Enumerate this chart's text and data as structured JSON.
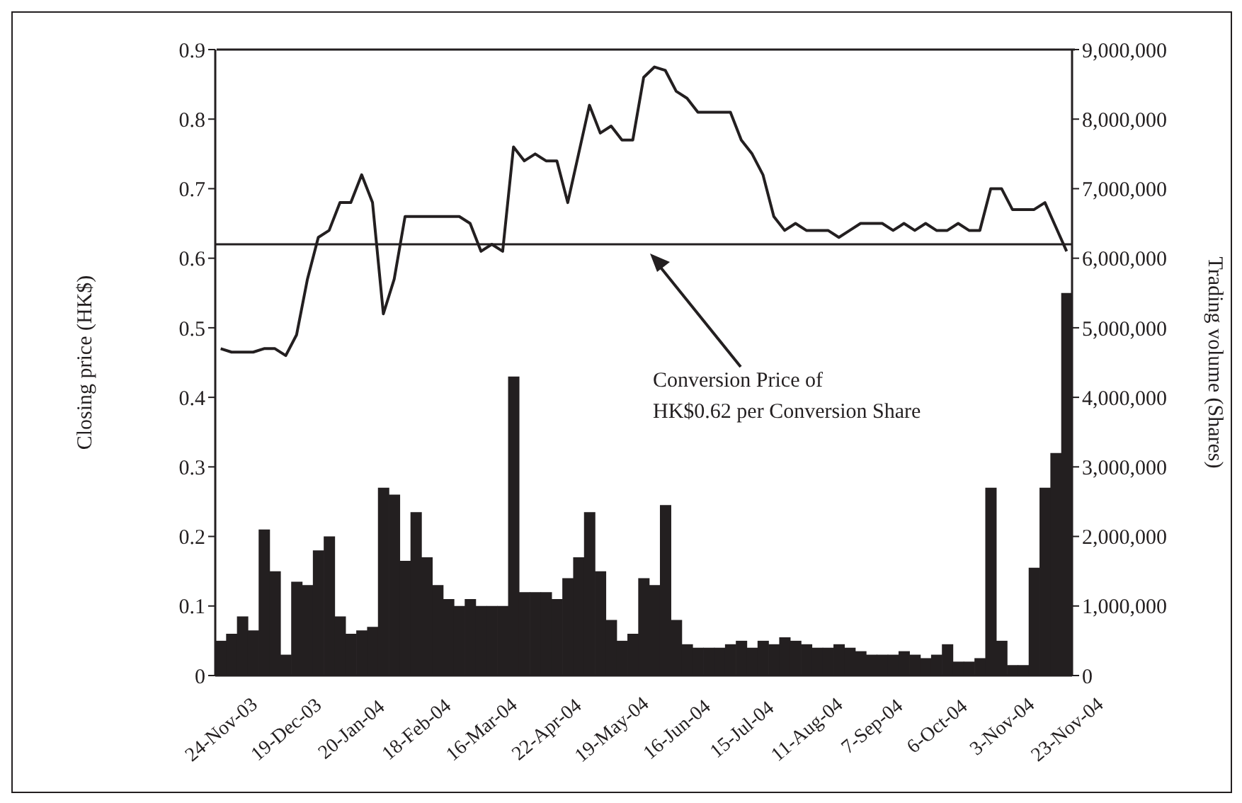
{
  "chart_data": {
    "type": "bar",
    "categories": [
      "24-Nov-03",
      null,
      null,
      null,
      null,
      null,
      "19-Dec-03",
      null,
      null,
      null,
      null,
      null,
      "20-Jan-04",
      null,
      null,
      null,
      null,
      null,
      "18-Feb-04",
      null,
      null,
      null,
      null,
      null,
      "16-Mar-04",
      null,
      null,
      null,
      null,
      null,
      "22-Apr-04",
      null,
      null,
      null,
      null,
      null,
      "19-May-04",
      null,
      null,
      null,
      null,
      null,
      "16-Jun-04",
      null,
      null,
      null,
      null,
      null,
      "15-Jul-04",
      null,
      null,
      null,
      null,
      null,
      "11-Aug-04",
      null,
      null,
      null,
      null,
      null,
      "7-Sep-04",
      null,
      null,
      null,
      null,
      null,
      "6-Oct-04",
      null,
      null,
      null,
      null,
      null,
      "3-Nov-04",
      null,
      null,
      null,
      null,
      null,
      "23-Nov-04"
    ],
    "series": [
      {
        "axis": "y2",
        "color": "#231f20",
        "values": [
          500000,
          600000,
          850000,
          650000,
          2100000,
          1500000,
          300000,
          1350000,
          1300000,
          1800000,
          2000000,
          850000,
          600000,
          650000,
          700000,
          2700000,
          2600000,
          1650000,
          2350000,
          1700000,
          1300000,
          1100000,
          1000000,
          1100000,
          1000000,
          1000000,
          1000000,
          4300000,
          1200000,
          1200000,
          1200000,
          1100000,
          1400000,
          1700000,
          2350000,
          1500000,
          800000,
          500000,
          600000,
          1400000,
          1300000,
          2450000,
          800000,
          450000,
          400000,
          400000,
          400000,
          450000,
          500000,
          400000,
          500000,
          450000,
          550000,
          500000,
          450000,
          400000,
          400000,
          450000,
          400000,
          350000,
          300000,
          300000,
          300000,
          350000,
          300000,
          250000,
          300000,
          450000,
          200000,
          200000,
          250000,
          2700000,
          500000,
          150000,
          150000,
          1550000,
          2700000,
          3200000,
          5500000
        ]
      },
      {
        "type": "line",
        "color": "#231f20",
        "values": [
          0.47,
          0.465,
          0.465,
          0.465,
          0.47,
          0.47,
          0.46,
          0.49,
          0.57,
          0.63,
          0.64,
          0.68,
          0.68,
          0.72,
          0.68,
          0.52,
          0.57,
          0.66,
          0.66,
          0.66,
          0.66,
          0.66,
          0.66,
          0.65,
          0.61,
          0.62,
          0.61,
          0.76,
          0.74,
          0.75,
          0.74,
          0.74,
          0.68,
          0.75,
          0.82,
          0.78,
          0.79,
          0.77,
          0.77,
          0.86,
          0.875,
          0.87,
          0.84,
          0.83,
          0.81,
          0.81,
          0.81,
          0.81,
          0.77,
          0.75,
          0.72,
          0.66,
          0.64,
          0.65,
          0.64,
          0.64,
          0.64,
          0.63,
          0.64,
          0.65,
          0.65,
          0.65,
          0.64,
          0.65,
          0.64,
          0.65,
          0.64,
          0.64,
          0.65,
          0.64,
          0.64,
          0.7,
          0.7,
          0.67,
          0.67,
          0.67,
          0.68,
          0.645,
          0.61
        ]
      }
    ],
    "ylabel": "Closing price (HK$)",
    "y2label": "Trading volume (Shares)",
    "ylim": [
      0,
      0.9
    ],
    "yticks": [
      0,
      0.1,
      0.2,
      0.3,
      0.4,
      0.5,
      0.6,
      0.7,
      0.8,
      0.9
    ],
    "y2lim": [
      0,
      9000000
    ],
    "y2ticks": [
      {
        "value": 0,
        "label": "0"
      },
      {
        "value": 1000000,
        "label": "1,000,000"
      },
      {
        "value": 2000000,
        "label": "2,000,000"
      },
      {
        "value": 3000000,
        "label": "3,000,000"
      },
      {
        "value": 4000000,
        "label": "4,000,000"
      },
      {
        "value": 5000000,
        "label": "5,000,000"
      },
      {
        "value": 6000000,
        "label": "6,000,000"
      },
      {
        "value": 7000000,
        "label": "7,000,000"
      },
      {
        "value": 8000000,
        "label": "8,000,000"
      },
      {
        "value": 9000000,
        "label": "9,000,000"
      }
    ],
    "ref_lines": [
      {
        "axis": "y",
        "value": 0.62,
        "color": "#231f20"
      }
    ],
    "annotations": [
      "Conversion Price of\nHK$0.62 per Conversion Share"
    ]
  }
}
